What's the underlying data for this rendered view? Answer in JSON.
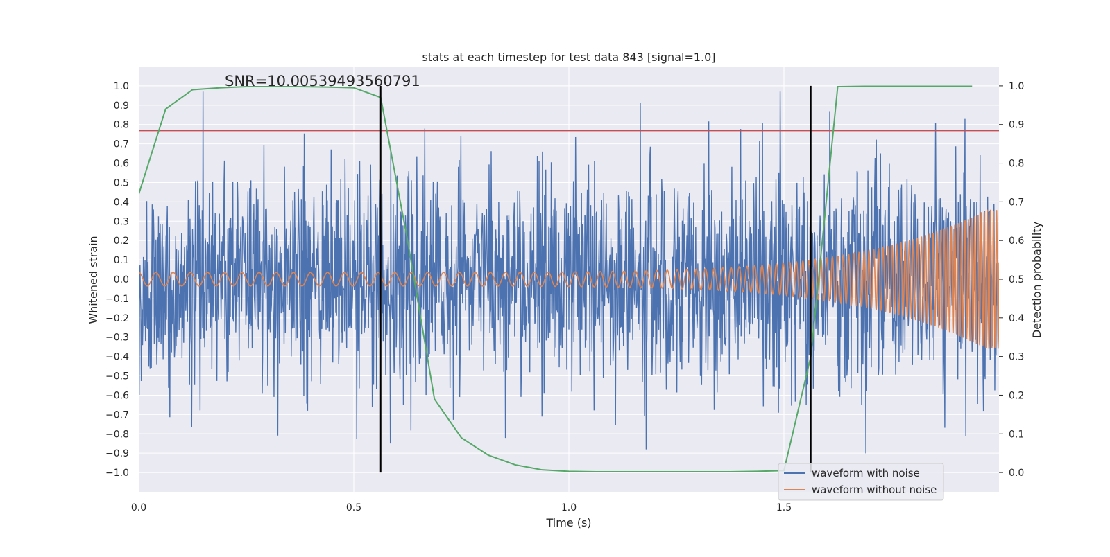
{
  "chart_data": {
    "type": "line",
    "title": "stats at each timestep for test data 843 [signal=1.0]",
    "xlabel": "Time (s)",
    "ylabel": "Whitened strain",
    "y2label": "Detection probability",
    "xlim": [
      0.0,
      2.0
    ],
    "ylim": [
      -1.1,
      1.1
    ],
    "y2lim": [
      -0.05,
      1.05
    ],
    "x_ticks": [
      "0.0",
      "0.5",
      "1.0",
      "1.5"
    ],
    "y_ticks": [
      "1.0",
      "0.9",
      "0.8",
      "0.7",
      "0.6",
      "0.5",
      "0.4",
      "0.3",
      "0.2",
      "0.1",
      "0.0",
      "-0.1",
      "-0.2",
      "-0.3",
      "-0.4",
      "-0.5",
      "-0.6",
      "-0.7",
      "-0.8",
      "-0.9",
      "-1.0"
    ],
    "y2_ticks": [
      "1.0",
      "0.9",
      "0.8",
      "0.7",
      "0.6",
      "0.5",
      "0.4",
      "0.3",
      "0.2",
      "0.1",
      "0.0"
    ],
    "annotation": "SNR=10.00539493560791",
    "threshold_y": 0.768,
    "vlines_x": [
      0.5625,
      1.5625
    ],
    "legend": [
      "waveform with noise",
      "waveform without noise"
    ],
    "legend_loc": "lower right",
    "colors": {
      "noise": "#4c72b0",
      "clean": "#dd8452",
      "prob": "#55a868",
      "threshold": "#c44e52",
      "vline": "#000000",
      "bg": "#eaeaf2",
      "grid": "#ffffff"
    },
    "series": [
      {
        "name": "Detection probability",
        "axis": "y2",
        "x": [
          0.0,
          0.0625,
          0.125,
          0.1875,
          0.25,
          0.3125,
          0.375,
          0.4375,
          0.5,
          0.5625,
          0.625,
          0.6875,
          0.75,
          0.8125,
          0.875,
          0.9375,
          1.0,
          1.0625,
          1.125,
          1.1875,
          1.25,
          1.3125,
          1.375,
          1.4375,
          1.5,
          1.5625,
          1.625,
          1.6875,
          1.75,
          1.8125,
          1.875,
          1.9375
        ],
        "values": [
          0.72,
          0.94,
          0.99,
          0.995,
          0.998,
          0.998,
          0.998,
          0.997,
          0.995,
          0.97,
          0.6,
          0.19,
          0.09,
          0.045,
          0.02,
          0.007,
          0.003,
          0.002,
          0.002,
          0.002,
          0.002,
          0.002,
          0.002,
          0.003,
          0.005,
          0.3,
          0.998,
          0.999,
          0.999,
          0.999,
          0.999,
          0.999
        ]
      }
    ],
    "noise_series": {
      "name": "waveform with noise",
      "description_of_generation": "pseudo-random white noise approximating the plotted whitened strain",
      "sample_rate_hz": 1024,
      "std": 0.27,
      "clip": [
        -1.0,
        0.97
      ],
      "seed": 843
    },
    "clean_series": {
      "name": "waveform without noise",
      "amp_start": 0.035,
      "amp_end": 0.36,
      "freq_start_hz": 25,
      "freq_end_hz": 140,
      "merger_time_s": 1.97
    }
  }
}
